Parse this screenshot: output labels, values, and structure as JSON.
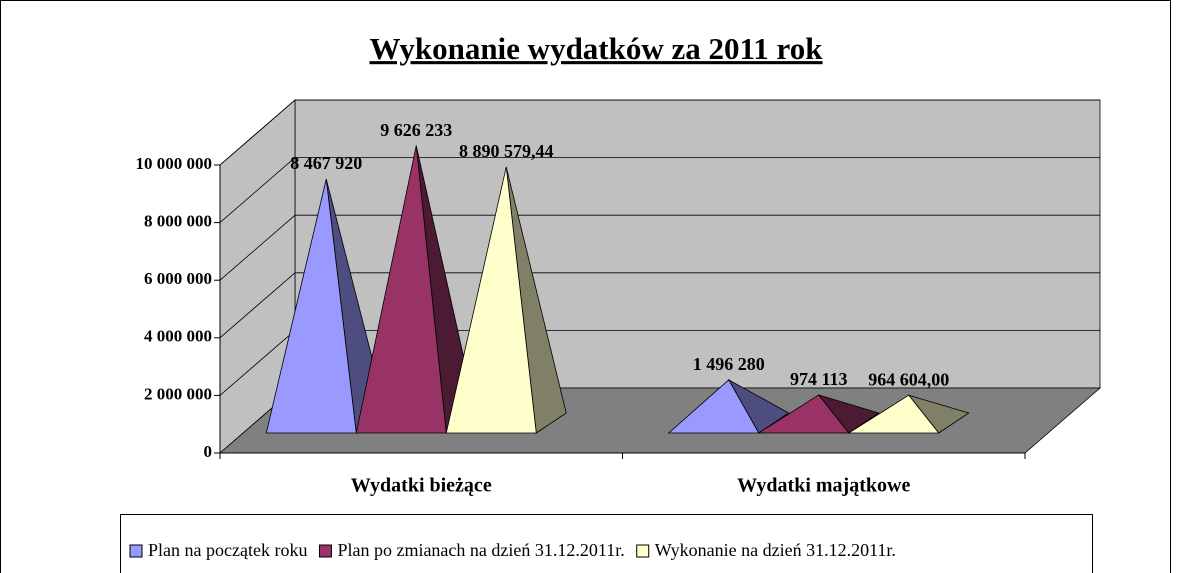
{
  "chart_data": {
    "type": "pyramid3d",
    "title": "Wykonanie wydatków za 2011 rok",
    "categories": [
      "Wydatki bieżące",
      "Wydatki majątkowe"
    ],
    "series": [
      {
        "name": "Plan na początek roku",
        "color": "#9999ff",
        "values": [
          8467920,
          1496280
        ],
        "value_labels": [
          "8 467 920",
          "1 496 280"
        ]
      },
      {
        "name": "Plan po zmianach na dzień 31.12.2011r.",
        "color": "#993366",
        "values": [
          9626233,
          974113
        ],
        "value_labels": [
          "9 626 233",
          "974 113"
        ]
      },
      {
        "name": "Wykonanie na dzień 31.12.2011r.",
        "color": "#ffffcc",
        "values": [
          8890579.44,
          964604.0
        ],
        "value_labels": [
          "8 890 579,44",
          "964 604,00"
        ]
      }
    ],
    "ylim": [
      0,
      10000000
    ],
    "yticks": [
      0,
      {
        "value": 2000000,
        "label": "2 000 000"
      },
      {
        "value": 4000000,
        "label": "4 000 000"
      },
      {
        "value": 6000000,
        "label": "6 000 000"
      },
      {
        "value": 8000000,
        "label": "8 000 000"
      },
      {
        "value": 10000000,
        "label": "10 000 000"
      }
    ],
    "grid": true,
    "legend": "bottom"
  }
}
